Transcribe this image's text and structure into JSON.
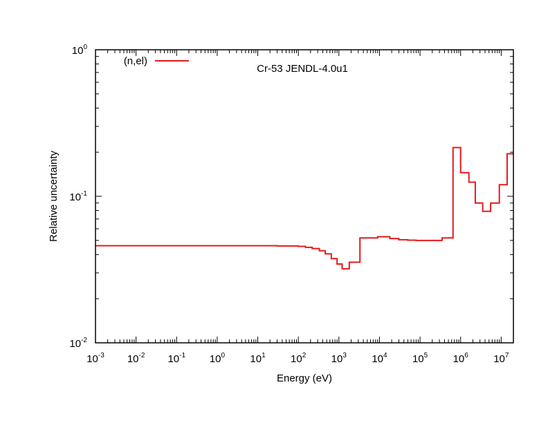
{
  "chart_data": {
    "type": "line",
    "title": "Cr-53 JENDL-4.0u1",
    "xlabel": "Energy (eV)",
    "ylabel": "Relative uncertainty",
    "x_scale": "log",
    "y_scale": "log",
    "xlim": [
      0.001,
      20000000
    ],
    "ylim": [
      0.01,
      1
    ],
    "x_ticks": [
      {
        "base": "10",
        "exp": "-3",
        "value": 0.001
      },
      {
        "base": "10",
        "exp": "-2",
        "value": 0.01
      },
      {
        "base": "10",
        "exp": "-1",
        "value": 0.1
      },
      {
        "base": "10",
        "exp": "0",
        "value": 1
      },
      {
        "base": "10",
        "exp": "1",
        "value": 10
      },
      {
        "base": "10",
        "exp": "2",
        "value": 100
      },
      {
        "base": "10",
        "exp": "3",
        "value": 1000
      },
      {
        "base": "10",
        "exp": "4",
        "value": 10000
      },
      {
        "base": "10",
        "exp": "5",
        "value": 100000
      },
      {
        "base": "10",
        "exp": "6",
        "value": 1000000
      },
      {
        "base": "10",
        "exp": "7",
        "value": 10000000
      }
    ],
    "y_ticks": [
      {
        "base": "10",
        "exp": "-2",
        "value": 0.01
      },
      {
        "base": "10",
        "exp": "-1",
        "value": 0.1
      },
      {
        "base": "10",
        "exp": "0",
        "value": 1
      }
    ],
    "grid": false,
    "legend_position": "top-left",
    "series": [
      {
        "name": "(n,el)",
        "color": "#e41a1c",
        "style": "step",
        "points": [
          [
            0.001,
            0.046
          ],
          [
            10,
            0.046
          ],
          [
            30,
            0.0458
          ],
          [
            100,
            0.0455
          ],
          [
            150,
            0.0448
          ],
          [
            220,
            0.044
          ],
          [
            330,
            0.0425
          ],
          [
            460,
            0.0405
          ],
          [
            650,
            0.0375
          ],
          [
            900,
            0.0345
          ],
          [
            1200,
            0.032
          ],
          [
            1800,
            0.0355
          ],
          [
            3300,
            0.052
          ],
          [
            9000,
            0.053
          ],
          [
            18000,
            0.0515
          ],
          [
            30000,
            0.0505
          ],
          [
            50000,
            0.0502
          ],
          [
            80000,
            0.05
          ],
          [
            350000,
            0.052
          ],
          [
            650000,
            0.215
          ],
          [
            1000000,
            0.145
          ],
          [
            1600000,
            0.125
          ],
          [
            2300000,
            0.09
          ],
          [
            3500000,
            0.079
          ],
          [
            5500000,
            0.09
          ],
          [
            9000000,
            0.12
          ],
          [
            14000000,
            0.195
          ],
          [
            20000000,
            0.195
          ]
        ]
      }
    ]
  }
}
